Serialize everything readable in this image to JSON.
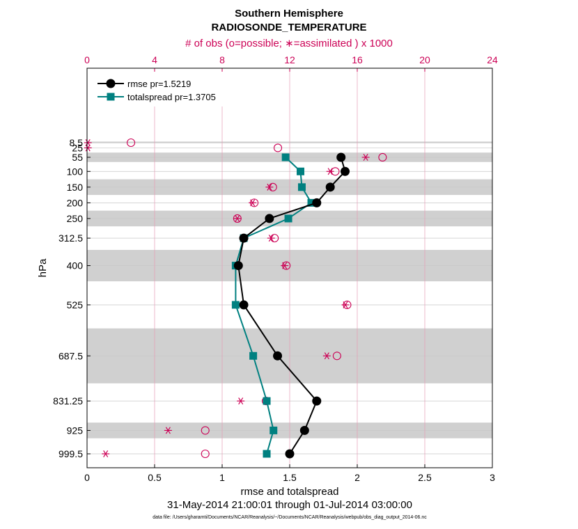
{
  "chart_data": {
    "type": "line",
    "title": "Southern Hemisphere",
    "subtitle": "RADIOSONDE_TEMPERATURE",
    "top_axis_label": "# of obs (o=possible; ∗=assimilated ) x 1000",
    "xlabel": "rmse and totalspread",
    "ylabel": "hPa",
    "date_range": "31-May-2014 21:00:01 through 01-Jul-2014 03:00:00",
    "data_file": "data file: /Users/gharamti/Documents/NCAR/Reanalysis/~/Documents/NCAR/Reanalysis/webpub/obs_diag_output_2014-06.nc",
    "xlim": [
      0,
      3
    ],
    "x_ticks": [
      "0",
      "0.5",
      "1",
      "1.5",
      "2",
      "2.5",
      "3"
    ],
    "top_xlim": [
      0,
      24
    ],
    "top_ticks": [
      "0",
      "4",
      "8",
      "12",
      "16",
      "20",
      "24"
    ],
    "levels": [
      "8.5",
      "25",
      "55",
      "100",
      "150",
      "200",
      "250",
      "312.5",
      "400",
      "525",
      "687.5",
      "831.25",
      "925",
      "999.5"
    ],
    "shaded_bands_hPa": [
      [
        5,
        10
      ],
      [
        40,
        70
      ],
      [
        125,
        175
      ],
      [
        225,
        275
      ],
      [
        350,
        450
      ],
      [
        600,
        775
      ],
      [
        900,
        950
      ]
    ],
    "series": [
      {
        "name": "rmse pr=1.5219",
        "color": "#000000",
        "marker": "circle",
        "values": [
          null,
          null,
          1.88,
          1.91,
          1.8,
          1.7,
          1.35,
          1.16,
          1.12,
          1.16,
          1.41,
          1.7,
          1.61,
          1.5
        ]
      },
      {
        "name": "totalspread pr=1.3705",
        "color": "#008080",
        "marker": "square",
        "values": [
          null,
          null,
          1.47,
          1.58,
          1.59,
          1.66,
          1.49,
          1.16,
          1.1,
          1.1,
          1.23,
          1.33,
          1.38,
          1.33
        ]
      }
    ],
    "obs_possible_k": [
      2.6,
      11.3,
      17.5,
      14.7,
      11.0,
      9.9,
      8.9,
      11.1,
      11.8,
      15.4,
      14.8,
      10.6,
      7.0,
      7.0
    ],
    "obs_assimilated_k": [
      0.05,
      0.05,
      16.5,
      14.4,
      10.8,
      9.8,
      8.9,
      10.9,
      11.7,
      15.3,
      14.2,
      9.1,
      4.8,
      1.1
    ],
    "legend_position": "top-left",
    "grid": true
  }
}
